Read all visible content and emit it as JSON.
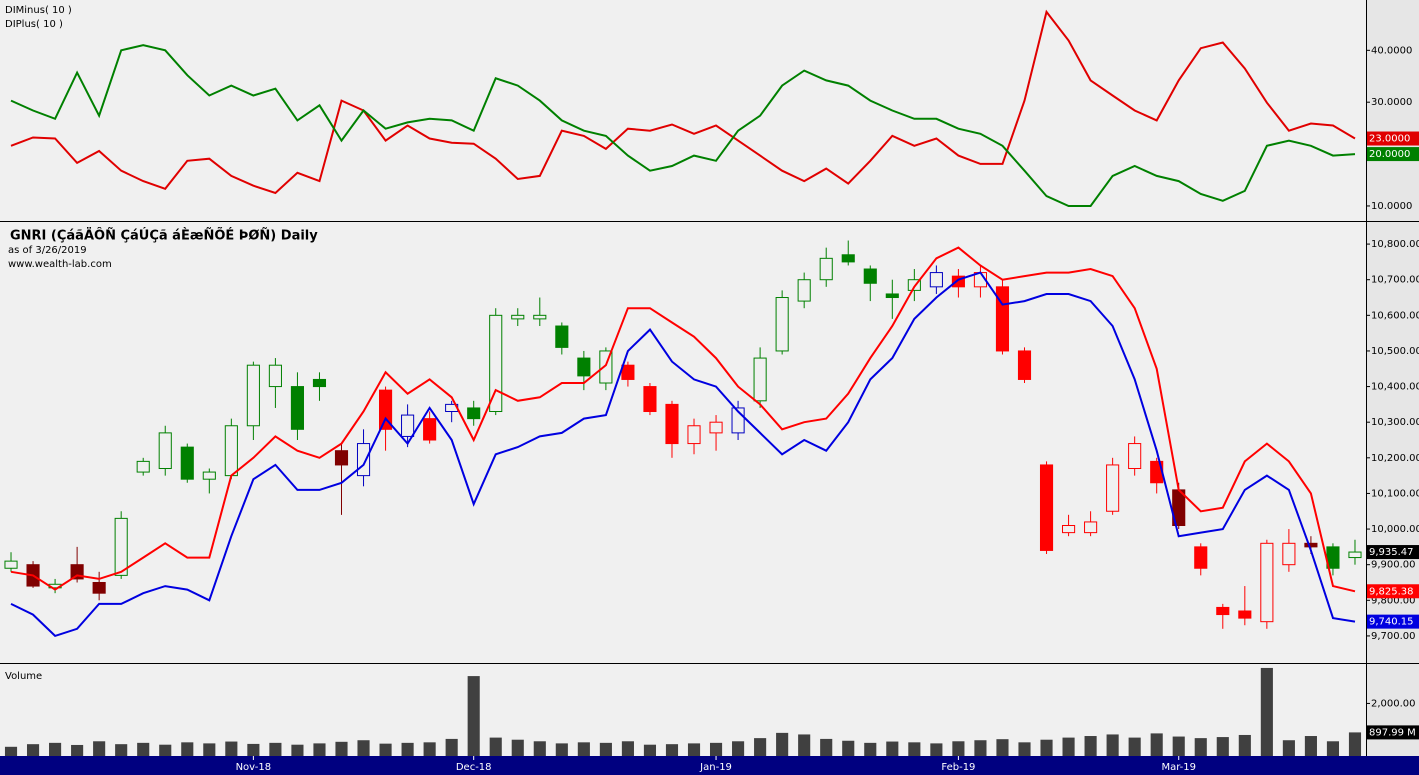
{
  "chart_data": [
    {
      "type": "line",
      "legend": "top-left",
      "ylim": [
        7.1,
        49.7
      ],
      "yticks": [
        {
          "value": 10,
          "label": "10.0000"
        },
        {
          "value": 20,
          "label": "20.0000"
        },
        {
          "value": 30,
          "label": "30.0000"
        },
        {
          "value": 40,
          "label": "40.0000"
        }
      ],
      "series": [
        {
          "name": "DIMinus( 10 )",
          "color": "#e00000",
          "last_label": "23.0000",
          "values": [
            21.6,
            23.2,
            23,
            18.3,
            20.6,
            16.8,
            14.8,
            13.3,
            18.7,
            19.1,
            15.8,
            13.9,
            12.5,
            16.4,
            14.8,
            30.3,
            28.4,
            22.6,
            25.5,
            23,
            22.2,
            22,
            19.1,
            15.2,
            15.8,
            24.5,
            23.5,
            21,
            24.9,
            24.5,
            25.7,
            23.9,
            25.5,
            22.6,
            19.7,
            16.8,
            14.8,
            17.2,
            14.3,
            18.7,
            23.5,
            21.6,
            23,
            19.7,
            18.1,
            18.1,
            30.3,
            47.4,
            41.9,
            34.2,
            31.3,
            28.4,
            26.5,
            34.2,
            40.4,
            41.5,
            36.5,
            29.9,
            24.5,
            25.9,
            25.5,
            23
          ]
        },
        {
          "name": "DIPlus( 10 )",
          "color": "#008000",
          "last_label": "20.0000",
          "values": [
            30.3,
            28.4,
            26.8,
            35.7,
            27.4,
            40,
            41,
            40,
            35.2,
            31.3,
            33.2,
            31.3,
            32.6,
            26.5,
            29.4,
            22.6,
            28.4,
            24.9,
            26.1,
            26.8,
            26.5,
            24.5,
            34.6,
            33.2,
            30.3,
            26.5,
            24.5,
            23.5,
            19.7,
            16.8,
            17.7,
            19.7,
            18.7,
            24.5,
            27.4,
            33.2,
            36.1,
            34.2,
            33.2,
            30.3,
            28.4,
            26.8,
            26.8,
            24.9,
            23.9,
            21.6,
            16.8,
            11.9,
            10,
            10,
            15.8,
            17.7,
            15.8,
            14.8,
            12.3,
            11,
            12.9,
            21.6,
            22.6,
            21.6,
            19.7,
            20
          ]
        }
      ]
    },
    {
      "type": "candlestick",
      "title": "GNRI (ÇáãÄÔÑ ÇáÚÇã áÈæÑÕÉ ÞØÑ) Daily",
      "subtitle": "as of 3/26/2019",
      "source": "www.wealth-lab.com",
      "ylim": [
        9624,
        10862
      ],
      "yticks": [
        {
          "value": 9700,
          "label": "9,700.00"
        },
        {
          "value": 9800,
          "label": "9,800.00"
        },
        {
          "value": 9900,
          "label": "9,900.00"
        },
        {
          "value": 10000,
          "label": "10,000.00"
        },
        {
          "value": 10100,
          "label": "10,100.00"
        },
        {
          "value": 10200,
          "label": "10,200.00"
        },
        {
          "value": 10300,
          "label": "10,300.00"
        },
        {
          "value": 10400,
          "label": "10,400.00"
        },
        {
          "value": 10500,
          "label": "10,500.00"
        },
        {
          "value": 10600,
          "label": "10,600.00"
        },
        {
          "value": 10700,
          "label": "10,700.00"
        },
        {
          "value": 10800,
          "label": "10,800.00"
        }
      ],
      "colors": {
        "up": "#008000",
        "down": "#ff0000",
        "neutral_up": "#0000c0",
        "neutral_down": "#800000"
      },
      "last_label": "9,935.47",
      "open": [
        9890,
        9900,
        9835,
        9900,
        9850,
        9870,
        10160,
        10170,
        10230,
        10140,
        10150,
        10290,
        10400,
        10400,
        10420,
        10220,
        10150,
        10390,
        10260,
        10310,
        10330,
        10340,
        10330,
        10590,
        10590,
        10570,
        10480,
        10410,
        10460,
        10400,
        10350,
        10240,
        10270,
        10270,
        10360,
        10500,
        10640,
        10700,
        10770,
        10730,
        10660,
        10670,
        10680,
        10710,
        10680,
        10680,
        10500,
        10180,
        9990,
        9990,
        10050,
        10170,
        10190,
        10110,
        9950,
        9780,
        9770,
        9740,
        9900,
        9960,
        9950,
        9920
      ],
      "high": [
        9935,
        9910,
        9860,
        9950,
        9880,
        10050,
        10200,
        10290,
        10240,
        10170,
        10310,
        10470,
        10480,
        10440,
        10440,
        10240,
        10280,
        10400,
        10350,
        10330,
        10360,
        10360,
        10620,
        10620,
        10650,
        10580,
        10500,
        10510,
        10470,
        10410,
        10360,
        10310,
        10320,
        10360,
        10510,
        10670,
        10720,
        10790,
        10810,
        10740,
        10700,
        10730,
        10740,
        10730,
        10740,
        10700,
        10510,
        10190,
        10040,
        10050,
        10200,
        10260,
        10200,
        10130,
        9960,
        9790,
        9840,
        9970,
        10000,
        9980,
        9960,
        9970
      ],
      "low": [
        9880,
        9835,
        9820,
        9850,
        9800,
        9860,
        10150,
        10150,
        10130,
        10100,
        10140,
        10250,
        10340,
        10250,
        10360,
        10040,
        10120,
        10220,
        10230,
        10240,
        10300,
        10290,
        10320,
        10570,
        10570,
        10490,
        10390,
        10390,
        10400,
        10320,
        10200,
        10210,
        10220,
        10250,
        10340,
        10490,
        10620,
        10680,
        10740,
        10640,
        10590,
        10640,
        10660,
        10650,
        10650,
        10490,
        10410,
        9930,
        9980,
        9980,
        10040,
        10150,
        10100,
        10000,
        9870,
        9720,
        9730,
        9720,
        9880,
        9930,
        9870,
        9900
      ],
      "close": [
        9910,
        9840,
        9845,
        9860,
        9820,
        10030,
        10190,
        10270,
        10140,
        10160,
        10290,
        10460,
        10460,
        10280,
        10400,
        10180,
        10240,
        10280,
        10320,
        10250,
        10350,
        10310,
        10600,
        10600,
        10600,
        10510,
        10430,
        10500,
        10420,
        10330,
        10240,
        10290,
        10300,
        10340,
        10480,
        10650,
        10700,
        10760,
        10750,
        10690,
        10650,
        10700,
        10720,
        10680,
        10720,
        10500,
        10420,
        9940,
        10010,
        10020,
        10180,
        10240,
        10130,
        10010,
        9890,
        9760,
        9750,
        9960,
        9960,
        9950,
        9890,
        9935.47
      ],
      "bands": [
        {
          "color": "#ff0000",
          "last_label": "9,825.38",
          "values": [
            9880,
            9870,
            9830,
            9870,
            9860,
            9880,
            9920,
            9960,
            9920,
            9920,
            10150,
            10200,
            10260,
            10220,
            10200,
            10240,
            10330,
            10440,
            10380,
            10420,
            10370,
            10250,
            10390,
            10360,
            10370,
            10410,
            10410,
            10460,
            10620,
            10620,
            10580,
            10540,
            10480,
            10400,
            10350,
            10280,
            10300,
            10310,
            10380,
            10480,
            10570,
            10680,
            10760,
            10790,
            10740,
            10700,
            10710,
            10720,
            10720,
            10730,
            10710,
            10620,
            10450,
            10110,
            10050,
            10060,
            10190,
            10240,
            10190,
            10100,
            9840,
            9825.38
          ]
        },
        {
          "color": "#0000e0",
          "last_label": "9,740.15",
          "values": [
            9790,
            9760,
            9700,
            9720,
            9790,
            9790,
            9820,
            9840,
            9830,
            9800,
            9980,
            10140,
            10180,
            10110,
            10110,
            10130,
            10180,
            10310,
            10240,
            10340,
            10250,
            10070,
            10210,
            10230,
            10260,
            10270,
            10310,
            10320,
            10500,
            10560,
            10470,
            10420,
            10400,
            10330,
            10270,
            10210,
            10250,
            10220,
            10300,
            10420,
            10480,
            10590,
            10650,
            10700,
            10720,
            10630,
            10640,
            10660,
            10660,
            10640,
            10570,
            10420,
            10220,
            9980,
            9990,
            10000,
            10110,
            10150,
            10110,
            9940,
            9750,
            9740.15
          ]
        }
      ]
    },
    {
      "type": "bar",
      "title": "Volume",
      "color": "#404040",
      "ylim": [
        0,
        3500
      ],
      "yticks": [
        {
          "value": 2000,
          "label": "2,000.00 M"
        }
      ],
      "last_label": "897.99 M",
      "categories": [
        null,
        null,
        null,
        null,
        null,
        null,
        null,
        null,
        null,
        null,
        null,
        "Nov-18",
        null,
        null,
        null,
        null,
        null,
        null,
        null,
        null,
        null,
        "Dec-18",
        null,
        null,
        null,
        null,
        null,
        null,
        null,
        null,
        null,
        null,
        "Jan-19",
        null,
        null,
        null,
        null,
        null,
        null,
        null,
        null,
        null,
        null,
        "Feb-19",
        null,
        null,
        null,
        null,
        null,
        null,
        null,
        null,
        null,
        "Mar-19",
        null,
        null,
        null,
        null,
        null,
        null,
        null,
        null
      ],
      "values": [
        350,
        450,
        500,
        420,
        560,
        450,
        500,
        430,
        520,
        480,
        550,
        460,
        500,
        430,
        480,
        540,
        600,
        470,
        500,
        520,
        650,
        3040,
        700,
        620,
        560,
        480,
        520,
        500,
        560,
        430,
        450,
        480,
        500,
        560,
        680,
        880,
        820,
        650,
        580,
        500,
        550,
        520,
        480,
        560,
        600,
        640,
        520,
        620,
        700,
        760,
        820,
        700,
        860,
        740,
        680,
        720,
        800,
        3350,
        600,
        760,
        560,
        897.99
      ]
    }
  ]
}
